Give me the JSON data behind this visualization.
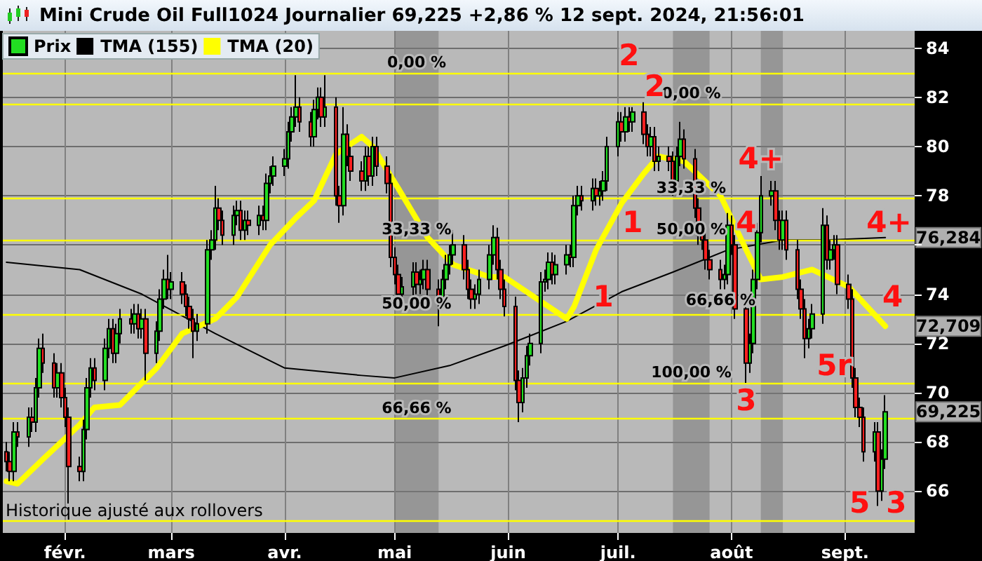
{
  "chart_data": {
    "type": "candlestick",
    "title": "Mini Crude Oil Full1024 Journalier 69,225 +2,86 % 12 sept. 2024, 21:56:01",
    "x": [
      "2024-01-16",
      "2024-01-17",
      "2024-01-18",
      "2024-01-19",
      "2024-01-22",
      "2024-01-23",
      "2024-01-24",
      "2024-01-25",
      "2024-01-26",
      "2024-01-29",
      "2024-01-30",
      "2024-01-31",
      "2024-02-01",
      "2024-02-02",
      "2024-02-05",
      "2024-02-06",
      "2024-02-07",
      "2024-02-08",
      "2024-02-09",
      "2024-02-12",
      "2024-02-13",
      "2024-02-14",
      "2024-02-15",
      "2024-02-16",
      "2024-02-19",
      "2024-02-20",
      "2024-02-21",
      "2024-02-22",
      "2024-02-23",
      "2024-02-26",
      "2024-02-27",
      "2024-02-28",
      "2024-02-29",
      "2024-03-01",
      "2024-03-04",
      "2024-03-05",
      "2024-03-06",
      "2024-03-07",
      "2024-03-08",
      "2024-03-11",
      "2024-03-12",
      "2024-03-13",
      "2024-03-14",
      "2024-03-15",
      "2024-03-18",
      "2024-03-19",
      "2024-03-20",
      "2024-03-21",
      "2024-03-22",
      "2024-03-25",
      "2024-03-26",
      "2024-03-27",
      "2024-03-28",
      "2024-03-29",
      "2024-04-01",
      "2024-04-02",
      "2024-04-03",
      "2024-04-04",
      "2024-04-05",
      "2024-04-08",
      "2024-04-09",
      "2024-04-10",
      "2024-04-11",
      "2024-04-12",
      "2024-04-15",
      "2024-04-16",
      "2024-04-17",
      "2024-04-18",
      "2024-04-19",
      "2024-04-22",
      "2024-04-23",
      "2024-04-24",
      "2024-04-25",
      "2024-04-26",
      "2024-04-29",
      "2024-04-30",
      "2024-05-01",
      "2024-05-02",
      "2024-05-03",
      "2024-05-06",
      "2024-05-07",
      "2024-05-08",
      "2024-05-09",
      "2024-05-10",
      "2024-05-13",
      "2024-05-14",
      "2024-05-15",
      "2024-05-16",
      "2024-05-17",
      "2024-05-20",
      "2024-05-21",
      "2024-05-22",
      "2024-05-23",
      "2024-05-24",
      "2024-05-27",
      "2024-05-28",
      "2024-05-29",
      "2024-05-30",
      "2024-05-31",
      "2024-06-03",
      "2024-06-04",
      "2024-06-05",
      "2024-06-06",
      "2024-06-07",
      "2024-06-10",
      "2024-06-11",
      "2024-06-12",
      "2024-06-13",
      "2024-06-14",
      "2024-06-17",
      "2024-06-18",
      "2024-06-19",
      "2024-06-20",
      "2024-06-21",
      "2024-06-24",
      "2024-06-25",
      "2024-06-26",
      "2024-06-27",
      "2024-06-28",
      "2024-07-01",
      "2024-07-02",
      "2024-07-03",
      "2024-07-04",
      "2024-07-05",
      "2024-07-08",
      "2024-07-09",
      "2024-07-10",
      "2024-07-11",
      "2024-07-12",
      "2024-07-15",
      "2024-07-16",
      "2024-07-17",
      "2024-07-18",
      "2024-07-19",
      "2024-07-22",
      "2024-07-23",
      "2024-07-24",
      "2024-07-25",
      "2024-07-26",
      "2024-07-29",
      "2024-07-30",
      "2024-07-31",
      "2024-08-01",
      "2024-08-02",
      "2024-08-05",
      "2024-08-06",
      "2024-08-07",
      "2024-08-08",
      "2024-08-09",
      "2024-08-12",
      "2024-08-13",
      "2024-08-14",
      "2024-08-15",
      "2024-08-16",
      "2024-08-19",
      "2024-08-20",
      "2024-08-21",
      "2024-08-22",
      "2024-08-23",
      "2024-08-26",
      "2024-08-27",
      "2024-08-28",
      "2024-08-29",
      "2024-08-30",
      "2024-09-02",
      "2024-09-03",
      "2024-09-04",
      "2024-09-05",
      "2024-09-06",
      "2024-09-09",
      "2024-09-10",
      "2024-09-11",
      "2024-09-12"
    ],
    "series": [
      {
        "name": "Prix",
        "colors": [
          "#ff2020",
          "#ff2020",
          "#22dd22",
          "#ff2020",
          "#22dd22",
          "#ff2020",
          "#22dd22",
          "#22dd22",
          "#ff2020",
          "#ff2020",
          "#22dd22",
          "#ff2020",
          "#ff2020",
          "#ff2020",
          "#ff2020",
          "#22dd22",
          "#22dd22",
          "#22dd22",
          "#ff2020",
          "#22dd22",
          "#22dd22",
          "#ff2020",
          "#22dd22",
          "#22dd22",
          "#ff2020",
          "#22dd22",
          "#ff2020",
          "#22dd22",
          "#ff2020",
          "#22dd22",
          "#22dd22",
          "#22dd22",
          "#ff2020",
          "#22dd22",
          "#ff2020",
          "#ff2020",
          "#ff2020",
          "#ff2020",
          "#22dd22",
          "#22dd22",
          "#22dd22",
          "#22dd22",
          "#ff2020",
          "#ff2020",
          "#22dd22",
          "#22dd22",
          "#ff2020",
          "#22dd22",
          "#ff2020",
          "#22dd22",
          "#ff2020",
          "#22dd22",
          "#22dd22",
          "#22dd22",
          "#22dd22",
          "#22dd22",
          "#22dd22",
          "#22dd22",
          "#ff2020",
          "#ff2020",
          "#22dd22",
          "#22dd22",
          "#ff2020",
          "#22dd22",
          "#ff2020",
          "#ff2020",
          "#22dd22",
          "#ff2020",
          "#ff2020",
          "#ff2020",
          "#22dd22",
          "#ff2020",
          "#22dd22",
          "#ff2020",
          "#ff2020",
          "#ff2020",
          "#ff2020",
          "#ff2020",
          "#22dd22",
          "#22dd22",
          "#ff2020",
          "#22dd22",
          "#22dd22",
          "#ff2020",
          "#ff2020",
          "#22dd22",
          "#22dd22",
          "#22dd22",
          "#22dd22",
          "#ff2020",
          "#ff2020",
          "#ff2020",
          "#22dd22",
          "#22dd22",
          "#22dd22",
          "#22dd22",
          "#ff2020",
          "#ff2020",
          "#ff2020",
          "#ff2020",
          "#ff2020",
          "#22dd22",
          "#22dd22",
          "#22dd22",
          "#22dd22",
          "#22dd22",
          "#22dd22",
          "#ff2020",
          "#22dd22",
          "#22dd22",
          "#ff2020",
          "#22dd22",
          "#22dd22",
          "#ff2020",
          "#22dd22",
          "#ff2020",
          "#22dd22",
          "#22dd22",
          "#22dd22",
          "#22dd22",
          "#ff2020",
          "#22dd22",
          "#ff2020",
          "#22dd22",
          "#ff2020",
          "#ff2020",
          "#22dd22",
          "#ff2020",
          "#22dd22",
          "#ff2020",
          "#ff2020",
          "#22dd22",
          "#22dd22",
          "#ff2020",
          "#ff2020",
          "#ff2020",
          "#ff2020",
          "#ff2020",
          "#ff2020",
          "#ff2020",
          "#22dd22",
          "#22dd22",
          "#ff2020",
          "#ff2020",
          "#ff2020",
          "#22dd22",
          "#22dd22",
          "#22dd22",
          "#22dd22",
          "#22dd22",
          "#ff2020",
          "#ff2020",
          "#22dd22",
          "#ff2020",
          "#ff2020",
          "#ff2020",
          "#ff2020",
          "#22dd22",
          "#22dd22",
          "#22dd22",
          "#ff2020",
          "#22dd22",
          "#22dd22",
          "#ff2020",
          "#ff2020",
          "#ff2020",
          "#ff2020",
          "#ff2020",
          "#ff2020",
          "#22dd22",
          "#ff2020",
          "#22dd22",
          "#22dd22"
        ],
        "ohlc": [
          [
            67.6,
            68.0,
            66.8,
            67.2
          ],
          [
            67.2,
            67.6,
            66.4,
            66.8
          ],
          [
            66.8,
            68.8,
            66.4,
            68.4
          ],
          [
            68.4,
            68.8,
            67.8,
            68.2
          ],
          [
            68.2,
            69.4,
            67.8,
            69.0
          ],
          [
            69.0,
            69.4,
            68.4,
            68.8
          ],
          [
            68.8,
            70.6,
            68.4,
            70.2
          ],
          [
            70.2,
            72.2,
            69.8,
            71.8
          ],
          [
            71.8,
            72.4,
            70.8,
            71.2
          ],
          [
            71.2,
            71.6,
            69.8,
            70.2
          ],
          [
            70.2,
            71.2,
            69.8,
            70.8
          ],
          [
            70.8,
            71.2,
            69.4,
            69.8
          ],
          [
            69.8,
            70.2,
            68.6,
            69.0
          ],
          [
            69.0,
            69.4,
            65.5,
            67.0
          ],
          [
            67.0,
            67.4,
            66.4,
            66.8
          ],
          [
            66.8,
            68.9,
            66.4,
            68.5
          ],
          [
            68.5,
            70.6,
            68.1,
            70.2
          ],
          [
            70.2,
            71.4,
            69.8,
            71.0
          ],
          [
            71.0,
            71.4,
            70.1,
            70.5
          ],
          [
            70.5,
            72.2,
            70.1,
            71.8
          ],
          [
            71.8,
            73.0,
            71.4,
            72.6
          ],
          [
            72.6,
            73.0,
            71.2,
            71.6
          ],
          [
            71.6,
            72.8,
            71.2,
            72.4
          ],
          [
            72.4,
            73.4,
            72.0,
            73.0
          ],
          [
            73.0,
            73.4,
            72.4,
            72.8
          ],
          [
            72.8,
            73.6,
            72.4,
            73.2
          ],
          [
            73.2,
            73.6,
            72.2,
            72.6
          ],
          [
            72.6,
            73.4,
            72.2,
            73.0
          ],
          [
            73.0,
            73.4,
            70.5,
            71.6
          ],
          [
            71.6,
            72.9,
            71.2,
            72.5
          ],
          [
            72.5,
            74.2,
            72.1,
            73.8
          ],
          [
            73.8,
            75.0,
            73.4,
            74.6
          ],
          [
            74.6,
            75.6,
            73.8,
            74.2
          ],
          [
            74.2,
            74.9,
            73.8,
            74.5
          ],
          [
            74.5,
            74.9,
            73.6,
            74.0
          ],
          [
            74.0,
            74.4,
            73.1,
            73.5
          ],
          [
            73.5,
            73.9,
            72.6,
            73.0
          ],
          [
            73.0,
            73.4,
            71.4,
            72.5
          ],
          [
            72.5,
            73.2,
            72.1,
            72.8
          ],
          [
            72.8,
            76.2,
            72.4,
            75.8
          ],
          [
            75.8,
            76.6,
            75.4,
            76.2
          ],
          [
            76.2,
            78.4,
            75.8,
            77.5
          ],
          [
            77.5,
            77.9,
            76.6,
            77.0
          ],
          [
            77.0,
            77.4,
            76.0,
            76.4
          ],
          [
            76.4,
            77.6,
            76.0,
            77.2
          ],
          [
            77.2,
            77.8,
            76.8,
            77.4
          ],
          [
            77.4,
            77.8,
            76.2,
            76.6
          ],
          [
            76.6,
            77.4,
            76.2,
            77.0
          ],
          [
            77.0,
            77.4,
            76.4,
            76.8
          ],
          [
            76.8,
            77.6,
            76.4,
            77.2
          ],
          [
            77.2,
            77.6,
            76.6,
            77.0
          ],
          [
            77.0,
            78.9,
            76.6,
            78.5
          ],
          [
            78.5,
            79.2,
            78.1,
            78.8
          ],
          [
            78.8,
            79.6,
            78.4,
            79.2
          ],
          [
            79.2,
            79.9,
            78.8,
            79.5
          ],
          [
            79.5,
            81.0,
            79.1,
            80.6
          ],
          [
            80.6,
            81.6,
            80.2,
            81.2
          ],
          [
            81.2,
            82.9,
            80.8,
            81.6
          ],
          [
            81.6,
            82.0,
            80.6,
            81.0
          ],
          [
            81.0,
            81.4,
            80.0,
            80.4
          ],
          [
            80.4,
            81.9,
            80.0,
            81.5
          ],
          [
            81.5,
            82.4,
            81.1,
            82.0
          ],
          [
            82.0,
            82.4,
            80.8,
            81.2
          ],
          [
            81.2,
            82.9,
            80.8,
            81.6
          ],
          [
            81.6,
            82.0,
            77.6,
            78.0
          ],
          [
            78.0,
            78.4,
            76.9,
            77.6
          ],
          [
            77.6,
            81.6,
            77.2,
            80.5
          ],
          [
            80.5,
            80.9,
            79.2,
            79.6
          ],
          [
            79.6,
            80.0,
            78.6,
            79.0
          ],
          [
            79.0,
            79.4,
            78.2,
            78.6
          ],
          [
            78.6,
            80.0,
            78.2,
            79.6
          ],
          [
            79.6,
            80.0,
            78.4,
            78.8
          ],
          [
            78.8,
            80.4,
            78.4,
            80.0
          ],
          [
            80.0,
            80.4,
            78.8,
            79.2
          ],
          [
            79.2,
            79.6,
            78.1,
            78.5
          ],
          [
            78.5,
            78.9,
            75.1,
            75.5
          ],
          [
            75.5,
            75.9,
            74.4,
            74.8
          ],
          [
            74.8,
            75.2,
            73.4,
            74.0
          ],
          [
            74.0,
            74.7,
            73.6,
            74.3
          ],
          [
            74.3,
            75.3,
            73.9,
            74.9
          ],
          [
            74.9,
            75.3,
            74.0,
            74.4
          ],
          [
            74.4,
            75.0,
            74.0,
            74.6
          ],
          [
            74.6,
            75.4,
            74.2,
            75.0
          ],
          [
            75.0,
            75.4,
            73.8,
            74.2
          ],
          [
            74.2,
            74.6,
            72.7,
            73.8
          ],
          [
            73.8,
            75.0,
            73.4,
            74.6
          ],
          [
            74.6,
            75.6,
            74.2,
            75.2
          ],
          [
            75.2,
            76.0,
            74.8,
            75.6
          ],
          [
            75.6,
            76.6,
            75.2,
            76.0
          ],
          [
            76.0,
            76.4,
            74.6,
            75.0
          ],
          [
            75.0,
            75.4,
            73.8,
            74.2
          ],
          [
            74.2,
            74.6,
            73.4,
            73.8
          ],
          [
            73.8,
            74.4,
            73.4,
            74.0
          ],
          [
            74.0,
            75.0,
            73.6,
            74.6
          ],
          [
            74.6,
            76.0,
            74.2,
            75.6
          ],
          [
            75.6,
            76.8,
            75.2,
            76.3
          ],
          [
            76.3,
            76.7,
            74.6,
            75.0
          ],
          [
            75.0,
            75.4,
            73.8,
            74.2
          ],
          [
            74.2,
            74.6,
            73.1,
            73.5
          ],
          [
            73.5,
            73.9,
            70.1,
            70.5
          ],
          [
            70.5,
            70.9,
            68.8,
            69.6
          ],
          [
            69.6,
            71.0,
            69.2,
            70.6
          ],
          [
            70.6,
            71.9,
            70.2,
            71.5
          ],
          [
            71.5,
            72.4,
            71.1,
            72.0
          ],
          [
            72.0,
            74.9,
            71.6,
            74.5
          ],
          [
            74.5,
            75.0,
            74.1,
            74.6
          ],
          [
            74.6,
            75.7,
            74.2,
            75.3
          ],
          [
            75.3,
            75.7,
            74.4,
            74.8
          ],
          [
            74.8,
            75.6,
            74.4,
            75.2
          ],
          [
            75.2,
            76.0,
            74.8,
            75.6
          ],
          [
            75.6,
            76.0,
            75.1,
            75.5
          ],
          [
            75.5,
            78.0,
            75.1,
            77.6
          ],
          [
            77.6,
            78.4,
            77.2,
            78.0
          ],
          [
            78.0,
            78.4,
            77.4,
            77.8
          ],
          [
            77.8,
            78.7,
            77.4,
            78.3
          ],
          [
            78.3,
            78.7,
            77.6,
            78.0
          ],
          [
            78.0,
            78.6,
            77.6,
            78.2
          ],
          [
            78.2,
            79.0,
            77.8,
            78.6
          ],
          [
            78.6,
            80.4,
            78.2,
            80.0
          ],
          [
            80.0,
            81.4,
            79.6,
            81.0
          ],
          [
            81.0,
            81.4,
            80.2,
            80.6
          ],
          [
            80.6,
            81.6,
            80.2,
            81.2
          ],
          [
            81.2,
            81.6,
            80.6,
            81.0
          ],
          [
            81.0,
            81.6,
            80.6,
            81.4
          ],
          [
            81.4,
            81.8,
            80.1,
            80.5
          ],
          [
            80.5,
            80.9,
            79.6,
            80.0
          ],
          [
            80.0,
            80.8,
            79.6,
            80.4
          ],
          [
            80.4,
            80.8,
            79.0,
            79.4
          ],
          [
            79.4,
            80.0,
            79.0,
            79.6
          ],
          [
            79.6,
            80.0,
            79.0,
            79.4
          ],
          [
            79.4,
            79.8,
            78.0,
            78.6
          ],
          [
            78.6,
            80.0,
            78.2,
            79.6
          ],
          [
            79.6,
            81.0,
            79.2,
            80.3
          ],
          [
            80.3,
            80.7,
            79.1,
            79.5
          ],
          [
            79.5,
            79.9,
            77.1,
            77.5
          ],
          [
            77.5,
            77.9,
            76.0,
            76.4
          ],
          [
            76.4,
            76.8,
            75.8,
            76.2
          ],
          [
            76.2,
            76.6,
            75.0,
            75.4
          ],
          [
            75.4,
            75.8,
            74.6,
            75.0
          ],
          [
            75.0,
            75.4,
            74.2,
            74.6
          ],
          [
            74.6,
            75.2,
            74.2,
            74.8
          ],
          [
            74.8,
            77.3,
            74.4,
            76.8
          ],
          [
            76.8,
            77.2,
            75.6,
            76.0
          ],
          [
            76.0,
            76.4,
            73.0,
            73.4
          ],
          [
            73.4,
            73.8,
            70.4,
            71.2
          ],
          [
            71.2,
            72.4,
            70.8,
            72.0
          ],
          [
            72.0,
            75.0,
            71.6,
            74.6
          ],
          [
            74.6,
            76.9,
            74.2,
            76.5
          ],
          [
            76.5,
            78.8,
            76.1,
            78.0
          ],
          [
            78.0,
            78.6,
            77.6,
            78.2
          ],
          [
            78.2,
            78.6,
            76.6,
            77.0
          ],
          [
            77.0,
            77.4,
            75.8,
            76.2
          ],
          [
            76.2,
            77.4,
            75.8,
            77.0
          ],
          [
            77.0,
            77.4,
            75.4,
            75.8
          ],
          [
            75.8,
            76.2,
            73.8,
            74.2
          ],
          [
            74.2,
            74.6,
            73.0,
            73.4
          ],
          [
            73.4,
            73.8,
            71.4,
            72.2
          ],
          [
            72.2,
            73.0,
            71.8,
            72.6
          ],
          [
            72.6,
            73.6,
            72.2,
            73.2
          ],
          [
            73.2,
            77.5,
            72.8,
            76.8
          ],
          [
            76.8,
            77.2,
            75.0,
            75.4
          ],
          [
            75.4,
            76.2,
            75.0,
            75.8
          ],
          [
            75.8,
            76.4,
            75.4,
            76.0
          ],
          [
            76.0,
            76.4,
            74.0,
            74.4
          ],
          [
            74.4,
            74.8,
            73.4,
            73.8
          ],
          [
            73.8,
            74.2,
            70.2,
            70.6
          ],
          [
            70.6,
            71.0,
            69.0,
            69.4
          ],
          [
            69.4,
            69.8,
            68.6,
            69.0
          ],
          [
            69.0,
            69.4,
            67.2,
            67.6
          ],
          [
            67.6,
            68.8,
            67.2,
            68.4
          ],
          [
            68.4,
            68.8,
            65.4,
            66.0
          ],
          [
            66.0,
            67.7,
            65.6,
            67.3
          ],
          [
            67.3,
            69.9,
            66.9,
            69.225
          ]
        ]
      },
      {
        "name": "TMA (155)",
        "type": "line",
        "color": "#000000",
        "x": [
          "2024-01-16",
          "2024-02-05",
          "2024-02-22",
          "2024-03-13",
          "2024-04-01",
          "2024-04-22",
          "2024-05-01",
          "2024-05-16",
          "2024-05-31",
          "2024-06-17",
          "2024-07-02",
          "2024-07-16",
          "2024-07-31",
          "2024-08-15",
          "2024-08-27",
          "2024-09-12"
        ],
        "values": [
          75.3,
          75.0,
          74.0,
          72.4,
          71.0,
          70.7,
          70.6,
          71.1,
          71.9,
          72.9,
          74.1,
          74.9,
          75.8,
          76.2,
          76.2,
          76.3
        ]
      },
      {
        "name": "TMA (20)",
        "type": "line",
        "color": "#ffff00",
        "x": [
          "2024-01-16",
          "2024-01-19",
          "2024-01-26",
          "2024-02-05",
          "2024-02-09",
          "2024-02-16",
          "2024-02-26",
          "2024-03-04",
          "2024-03-13",
          "2024-03-19",
          "2024-03-28",
          "2024-04-04",
          "2024-04-09",
          "2024-04-15",
          "2024-04-22",
          "2024-04-25",
          "2024-05-02",
          "2024-05-10",
          "2024-05-17",
          "2024-05-27",
          "2024-05-31",
          "2024-06-06",
          "2024-06-17",
          "2024-06-19",
          "2024-06-25",
          "2024-07-02",
          "2024-07-08",
          "2024-07-12",
          "2024-07-19",
          "2024-07-29",
          "2024-08-05",
          "2024-08-09",
          "2024-08-15",
          "2024-08-23",
          "2024-09-02",
          "2024-09-12"
        ],
        "values": [
          66.4,
          66.3,
          67.3,
          68.7,
          69.4,
          69.5,
          71.0,
          72.4,
          73.0,
          73.9,
          76.0,
          77.1,
          77.8,
          79.7,
          80.4,
          80.0,
          78.3,
          76.3,
          75.2,
          74.7,
          74.7,
          74.1,
          73.0,
          73.5,
          75.8,
          77.7,
          78.9,
          79.6,
          79.4,
          78.0,
          75.8,
          74.6,
          74.7,
          75.0,
          74.3,
          72.7
        ]
      }
    ],
    "xlim": [
      "2024-01-15",
      "2024-09-20"
    ],
    "xticks": [
      {
        "value": "2024-02-01",
        "label": "févr."
      },
      {
        "value": "2024-03-01",
        "label": "mars"
      },
      {
        "value": "2024-04-01",
        "label": "avr."
      },
      {
        "value": "2024-05-01",
        "label": "mai"
      },
      {
        "value": "2024-06-01",
        "label": "juin"
      },
      {
        "value": "2024-07-01",
        "label": "juil."
      },
      {
        "value": "2024-08-01",
        "label": "août"
      },
      {
        "value": "2024-09-01",
        "label": "sept."
      }
    ],
    "ylim": [
      64.3,
      84.7
    ],
    "yticks": [
      66,
      68,
      70,
      72,
      74,
      {
        "value": 76,
        "label": null
      },
      78,
      80,
      82,
      84
    ],
    "grid": true,
    "legend": "top left",
    "marker": "none",
    "ref_lines": [
      {
        "axis": "y",
        "value": 83.0,
        "color": "#ffff00"
      },
      {
        "axis": "y",
        "value": 81.75,
        "color": "#ffff00"
      },
      {
        "axis": "y",
        "value": 77.9,
        "color": "#ffff00"
      },
      {
        "axis": "y",
        "value": 76.2,
        "color": "#ffff00"
      },
      {
        "axis": "y",
        "value": 73.2,
        "color": "#ffff00"
      },
      {
        "axis": "y",
        "value": 70.4,
        "color": "#ffff00"
      },
      {
        "axis": "y",
        "value": 68.95,
        "color": "#ffff00"
      },
      {
        "axis": "y",
        "value": 64.8,
        "color": "#ffff00"
      }
    ],
    "bands": [
      {
        "axis": "x",
        "from": "2024-05-01",
        "to": "2024-05-13",
        "color": "#7a7a7a"
      },
      {
        "axis": "x",
        "from": "2024-07-16",
        "to": "2024-07-26",
        "color": "#7a7a7a"
      },
      {
        "axis": "x",
        "from": "2024-08-09",
        "to": "2024-08-15",
        "color": "#7a7a7a"
      }
    ],
    "annotations": [
      {
        "text": "0,00 %",
        "x": "2024-05-07",
        "y": 83.0
      },
      {
        "text": "33,33 %",
        "x": "2024-05-07",
        "y": 76.2
      },
      {
        "text": "50,00 %",
        "x": "2024-05-07",
        "y": 73.2
      },
      {
        "text": "66,66 %",
        "x": "2024-05-07",
        "y": 68.95
      },
      {
        "text": "0,00 %",
        "x": "2024-07-21",
        "y": 81.75
      },
      {
        "text": "33,33 %",
        "x": "2024-07-21",
        "y": 77.9
      },
      {
        "text": "50,00 %",
        "x": "2024-07-21",
        "y": 76.2
      },
      {
        "text": "66,66 %",
        "x": "2024-07-29",
        "y": 74.2
      },
      {
        "text": "100,00 %",
        "x": "2024-07-21",
        "y": 70.4
      },
      {
        "text": "1",
        "x": "2024-07-05",
        "y": 76.2
      },
      {
        "text": "2",
        "x": "2024-07-11",
        "y": 81.75
      },
      {
        "text": "3",
        "x": "2024-08-05",
        "y": 70.4
      },
      {
        "text": "4",
        "x": "2024-08-05",
        "y": 76.2
      },
      {
        "text": "4+",
        "x": "2024-08-09",
        "y": 78.8
      },
      {
        "text": "5r",
        "x": "2024-08-29",
        "y": 70.4
      },
      {
        "text": "5",
        "x": "2024-09-05",
        "y": 64.8
      },
      {
        "text": "1",
        "x": "2024-06-27",
        "y": 73.2
      },
      {
        "text": "2",
        "x": "2024-07-04",
        "y": 83.0
      },
      {
        "text": "3",
        "x": "2024-09-15",
        "y": 64.8
      },
      {
        "text": "4+",
        "x": "2024-09-13",
        "y": 76.2
      },
      {
        "text": "4",
        "x": "2024-09-14",
        "y": 73.2
      },
      {
        "text": "76,284",
        "x": "2024-09-12",
        "y": 76.3
      },
      {
        "text": "72,709",
        "x": "2024-09-12",
        "y": 72.7
      },
      {
        "text": "69,225",
        "x": "2024-09-12",
        "y": 69.225
      },
      "Historique ajusté aux rollovers"
    ]
  }
}
